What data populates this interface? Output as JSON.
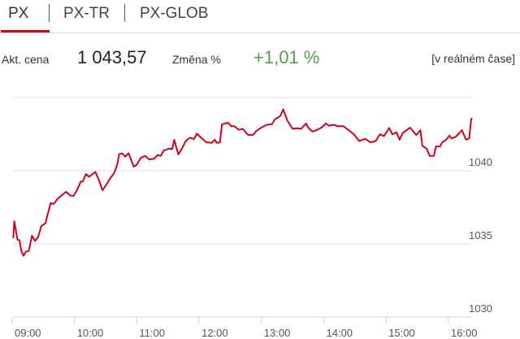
{
  "tabs": [
    {
      "label": "PX",
      "active": true
    },
    {
      "label": "PX-TR",
      "active": false
    },
    {
      "label": "PX-GLOB",
      "active": false
    }
  ],
  "info": {
    "price_label": "Akt. cena",
    "price_value": "1 043,57",
    "change_label": "Změna %",
    "change_value": "+1,01 %",
    "realtime_label": "[v reálném čase]"
  },
  "colors": {
    "accent": "#d0021b",
    "line": "#d0021b",
    "positive": "#5a9a4a",
    "grid": "#dddddd"
  },
  "chart_data": {
    "type": "line",
    "title": "",
    "xlabel": "",
    "ylabel": "",
    "ylim": [
      1030,
      1045
    ],
    "yticks": [
      "1030",
      "1035",
      "1040"
    ],
    "xticks": [
      "09:00",
      "10:00",
      "11:00",
      "12:00",
      "13:00",
      "14:00",
      "15:00",
      "16:00"
    ],
    "grid": true,
    "series": [
      {
        "points": [
          [
            "09:01",
            1035.39
          ],
          [
            "09:02",
            1036.55
          ],
          [
            "09:05",
            1035.3
          ],
          [
            "09:07",
            1035.24
          ],
          [
            "09:09",
            1034.46
          ],
          [
            "09:11",
            1034.19
          ],
          [
            "09:13",
            1034.46
          ],
          [
            "09:16",
            1034.52
          ],
          [
            "09:19",
            1035.57
          ],
          [
            "09:22",
            1035.2
          ],
          [
            "09:25",
            1035.48
          ],
          [
            "09:28",
            1036.22
          ],
          [
            "09:32",
            1036.4
          ],
          [
            "09:37",
            1037.79
          ],
          [
            "09:40",
            1037.73
          ],
          [
            "09:44",
            1038.1
          ],
          [
            "09:48",
            1038.34
          ],
          [
            "09:52",
            1038.56
          ],
          [
            "09:56",
            1038.3
          ],
          [
            "09:59",
            1038.28
          ],
          [
            "10:02",
            1038.62
          ],
          [
            "10:06",
            1039.26
          ],
          [
            "10:08",
            1039.26
          ],
          [
            "10:11",
            1039.78
          ],
          [
            "10:14",
            1039.59
          ],
          [
            "10:20",
            1039.91
          ],
          [
            "10:23",
            1039.45
          ],
          [
            "10:27",
            1038.67
          ],
          [
            "10:31",
            1039.08
          ],
          [
            "10:34",
            1039.45
          ],
          [
            "10:38",
            1039.82
          ],
          [
            "10:41",
            1040.37
          ],
          [
            "10:43",
            1041.14
          ],
          [
            "10:46",
            1041.18
          ],
          [
            "10:49",
            1040.96
          ],
          [
            "10:52",
            1041.2
          ],
          [
            "10:57",
            1040.28
          ],
          [
            "11:00",
            1040.41
          ],
          [
            "11:04",
            1040.89
          ],
          [
            "11:08",
            1041.01
          ],
          [
            "11:12",
            1040.77
          ],
          [
            "11:17",
            1040.83
          ],
          [
            "11:20",
            1041.07
          ],
          [
            "11:23",
            1041.01
          ],
          [
            "11:26",
            1041.38
          ],
          [
            "11:31",
            1041.51
          ],
          [
            "11:34",
            1041.48
          ],
          [
            "11:36",
            1042.12
          ],
          [
            "11:40",
            1041.11
          ],
          [
            "11:44",
            1041.57
          ],
          [
            "11:47",
            1042.03
          ],
          [
            "11:51",
            1042.25
          ],
          [
            "11:55",
            1042.16
          ],
          [
            "11:58",
            1042.53
          ],
          [
            "12:02",
            1042.25
          ],
          [
            "12:07",
            1041.94
          ],
          [
            "12:12",
            1041.9
          ],
          [
            "12:15",
            1042.12
          ],
          [
            "12:17",
            1041.9
          ],
          [
            "12:20",
            1041.94
          ],
          [
            "12:22",
            1043.17
          ],
          [
            "12:28",
            1043.28
          ],
          [
            "12:31",
            1043.04
          ],
          [
            "12:34",
            1043.04
          ],
          [
            "12:38",
            1042.8
          ],
          [
            "12:42",
            1042.86
          ],
          [
            "12:47",
            1042.45
          ],
          [
            "12:52",
            1042.45
          ],
          [
            "12:55",
            1042.71
          ],
          [
            "13:00",
            1042.95
          ],
          [
            "13:05",
            1043.14
          ],
          [
            "13:10",
            1043.17
          ],
          [
            "13:13",
            1043.51
          ],
          [
            "13:18",
            1043.73
          ],
          [
            "13:21",
            1044.19
          ],
          [
            "13:25",
            1043.41
          ],
          [
            "13:30",
            1042.86
          ],
          [
            "13:34",
            1042.9
          ],
          [
            "13:38",
            1042.86
          ],
          [
            "13:43",
            1043.23
          ],
          [
            "13:45",
            1042.95
          ],
          [
            "13:49",
            1042.68
          ],
          [
            "13:53",
            1042.77
          ],
          [
            "13:58",
            1042.95
          ],
          [
            "14:02",
            1043.23
          ],
          [
            "14:05",
            1043.08
          ],
          [
            "14:10",
            1043.14
          ],
          [
            "14:13",
            1043.04
          ],
          [
            "14:19",
            1043.04
          ],
          [
            "14:24",
            1042.77
          ],
          [
            "14:29",
            1042.49
          ],
          [
            "14:34",
            1042.03
          ],
          [
            "14:40",
            1042.18
          ],
          [
            "14:45",
            1041.94
          ],
          [
            "14:50",
            1042.03
          ],
          [
            "14:54",
            1042.49
          ],
          [
            "14:58",
            1042.36
          ],
          [
            "15:03",
            1042.92
          ],
          [
            "15:06",
            1042.49
          ],
          [
            "15:10",
            1042.62
          ],
          [
            "15:13",
            1042.12
          ],
          [
            "15:16",
            1042.58
          ],
          [
            "15:23",
            1042.95
          ],
          [
            "15:29",
            1042.44
          ],
          [
            "15:33",
            1042.77
          ],
          [
            "15:35",
            1041.7
          ],
          [
            "15:39",
            1041.51
          ],
          [
            "15:42",
            1041.01
          ],
          [
            "15:46",
            1041.01
          ],
          [
            "15:48",
            1041.66
          ],
          [
            "15:52",
            1041.66
          ],
          [
            "15:54",
            1041.94
          ],
          [
            "15:58",
            1042.12
          ],
          [
            "16:01",
            1042.4
          ],
          [
            "16:03",
            1042.21
          ],
          [
            "16:07",
            1042.31
          ],
          [
            "16:13",
            1042.77
          ],
          [
            "16:17",
            1042.12
          ],
          [
            "16:20",
            1042.21
          ],
          [
            "16:22",
            1043.54
          ],
          [
            "16:23",
            1043.57
          ]
        ]
      }
    ]
  }
}
